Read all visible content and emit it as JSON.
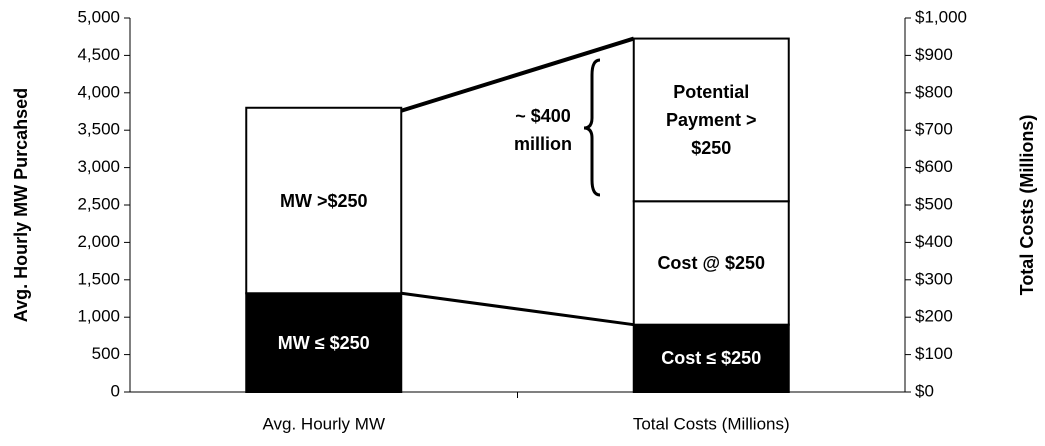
{
  "chart_data": {
    "type": "bar",
    "categories": [
      "Avg. Hourly MW",
      "Total Costs (Millions)"
    ],
    "ylabel": "Avg. Hourly MW Purcahsed",
    "y2label": "Total Costs (Millions)",
    "stacked": true,
    "series": [
      {
        "name": "MW ≤ $250",
        "color": "#000000",
        "values": [
          1320,
          null
        ]
      },
      {
        "name": "MW >$250",
        "color": "#ffffff",
        "values": [
          2480,
          null
        ]
      },
      {
        "name": "Cost ≤ $250",
        "color": "#000000",
        "values": [
          null,
          180
        ],
        "axis": "y2"
      },
      {
        "name": "Cost @ $250",
        "color": "#ffffff",
        "values": [
          null,
          330
        ],
        "axis": "y2"
      },
      {
        "name": "Potential Payment > $250",
        "color": "#ffffff",
        "values": [
          null,
          435
        ],
        "axis": "y2"
      }
    ],
    "annotations": [
      "~ $400 million"
    ],
    "ylim": [
      0,
      5000
    ],
    "yticks": [
      0,
      500,
      {
        "value": 1000,
        "label": "1,000"
      },
      {
        "value": 1500,
        "label": "1,500"
      },
      {
        "value": 2000,
        "label": "2,000"
      },
      {
        "value": 2500,
        "label": "2,500"
      },
      {
        "value": 3000,
        "label": "3,000"
      },
      {
        "value": 3500,
        "label": "3,500"
      },
      {
        "value": 4000,
        "label": "4,000"
      },
      {
        "value": 4500,
        "label": "4,500"
      },
      {
        "value": 5000,
        "label": "5,000"
      }
    ],
    "y2lim": [
      0,
      1000
    ],
    "y2ticks": [
      {
        "value": 0,
        "label": "$0"
      },
      {
        "value": 100,
        "label": "$100"
      },
      {
        "value": 200,
        "label": "$200"
      },
      {
        "value": 300,
        "label": "$300"
      },
      {
        "value": 400,
        "label": "$400"
      },
      {
        "value": 500,
        "label": "$500"
      },
      {
        "value": 600,
        "label": "$600"
      },
      {
        "value": 700,
        "label": "$700"
      },
      {
        "value": 800,
        "label": "$800"
      },
      {
        "value": 900,
        "label": "$900"
      },
      {
        "value": 1000,
        "label": "$1,000"
      }
    ]
  }
}
